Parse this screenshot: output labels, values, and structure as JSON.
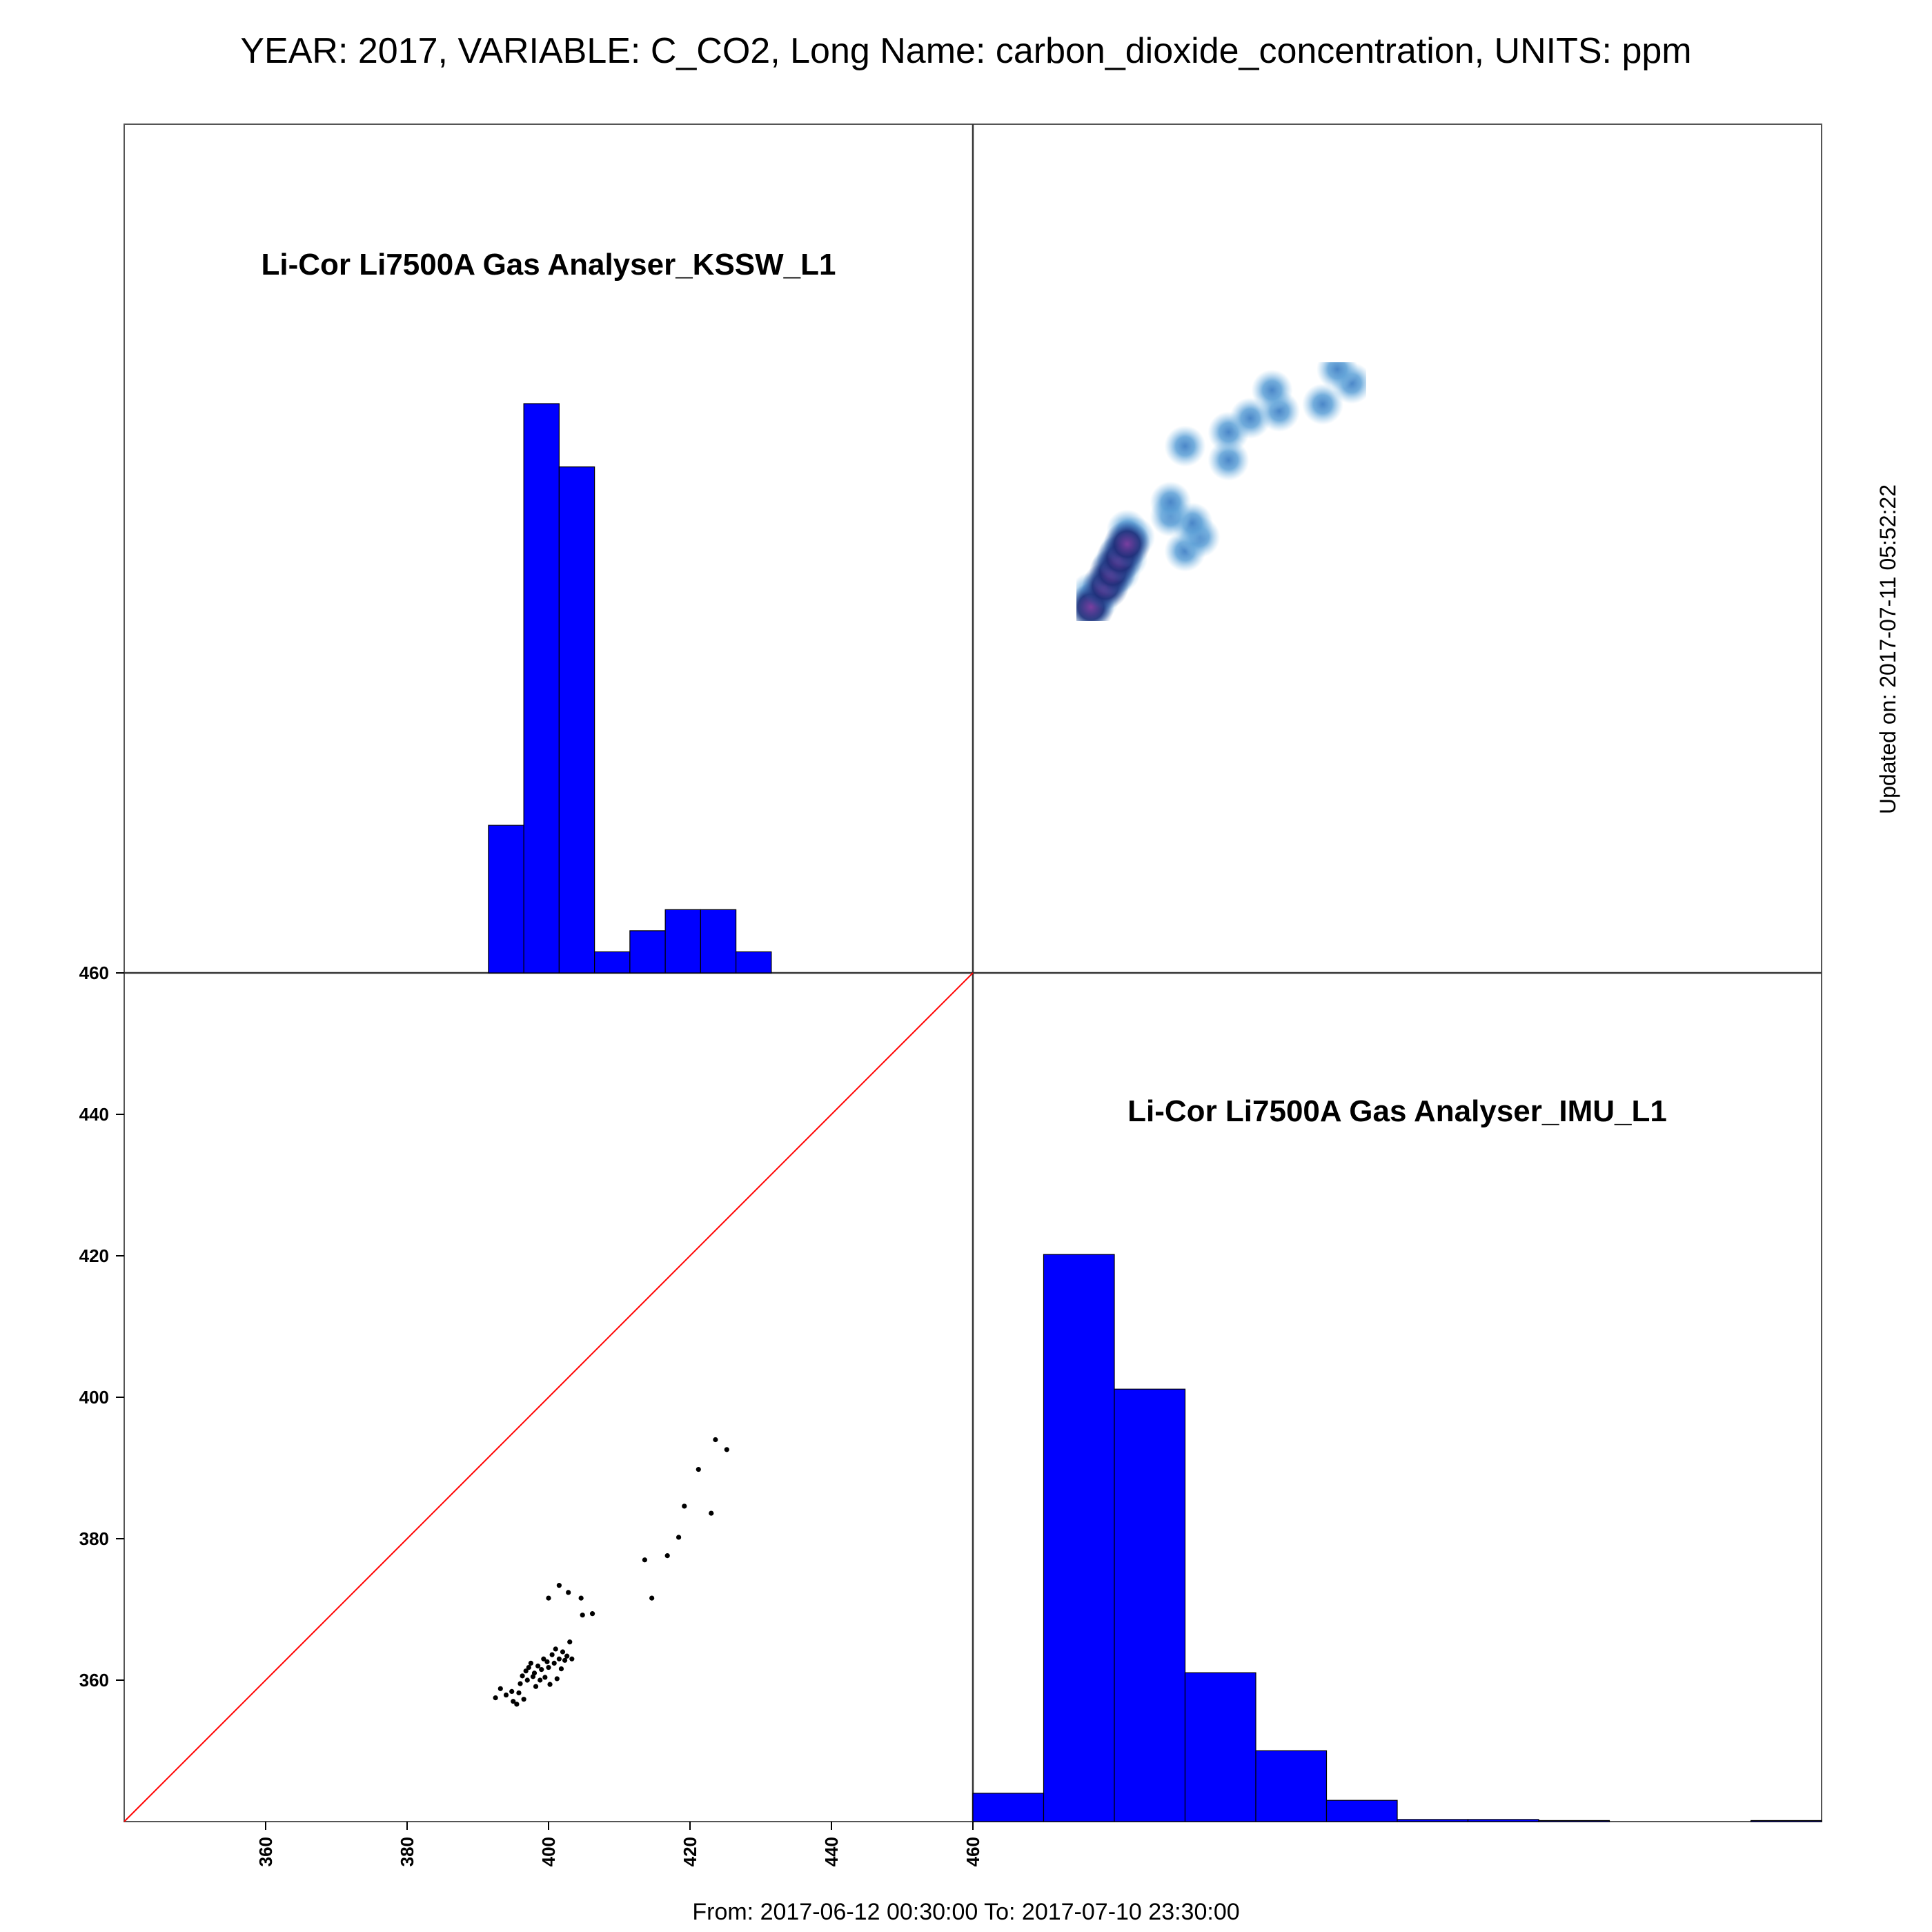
{
  "header": {
    "title": "YEAR: 2017, VARIABLE: C_CO2, Long Name: carbon_dioxide_concentration, UNITS: ppm"
  },
  "footer": {
    "range": "From: 2017-06-12 00:30:00 To: 2017-07-10 23:30:00",
    "updated": "Updated on: 2017-07-11 05:52:22"
  },
  "colors": {
    "histogram": "#0000ff",
    "identity_line": "#ff0000",
    "points": "#000000"
  },
  "chart_data": [
    {
      "type": "bar",
      "panel": "top-left",
      "title": "Li-Cor Li7500A Gas Analyser_KSSW_L1",
      "bins": [
        {
          "x0": 390,
          "x1": 395,
          "count": 21
        },
        {
          "x0": 395,
          "x1": 400,
          "count": 81
        },
        {
          "x0": 400,
          "x1": 405,
          "count": 72
        },
        {
          "x0": 405,
          "x1": 410,
          "count": 3
        },
        {
          "x0": 410,
          "x1": 415,
          "count": 6
        },
        {
          "x0": 415,
          "x1": 420,
          "count": 9
        },
        {
          "x0": 420,
          "x1": 425,
          "count": 9
        },
        {
          "x0": 425,
          "x1": 430,
          "count": 3
        }
      ],
      "xlim": [
        340,
        460
      ]
    },
    {
      "type": "heatmap",
      "panel": "top-right",
      "description_points": [
        [
          392,
          358
        ],
        [
          393,
          359
        ],
        [
          394,
          358
        ],
        [
          395,
          360
        ],
        [
          396,
          361
        ],
        [
          397,
          362
        ],
        [
          398,
          361
        ],
        [
          399,
          363
        ],
        [
          400,
          362
        ],
        [
          401,
          363
        ],
        [
          402,
          364
        ],
        [
          403,
          363
        ],
        [
          400,
          371
        ],
        [
          402,
          373
        ],
        [
          404,
          372
        ],
        [
          405,
          369
        ],
        [
          407,
          369
        ],
        [
          413,
          377
        ],
        [
          415,
          371
        ],
        [
          417,
          377
        ],
        [
          419,
          380
        ],
        [
          420,
          384
        ],
        [
          421,
          390
        ],
        [
          423,
          383
        ],
        [
          424,
          394
        ],
        [
          426,
          392
        ]
      ],
      "xlim": [
        340,
        460
      ],
      "ylim": [
        340,
        460
      ]
    },
    {
      "type": "scatter",
      "panel": "bottom-left",
      "x_ticks": [
        360,
        380,
        400,
        420,
        440,
        460
      ],
      "y_ticks": [
        360,
        380,
        400,
        420,
        440,
        460
      ],
      "xlim": [
        340,
        460
      ],
      "ylim": [
        340,
        460
      ],
      "identity_line": true,
      "points": [
        [
          392.5,
          357.5
        ],
        [
          393.2,
          358.8
        ],
        [
          394.0,
          357.9
        ],
        [
          394.8,
          358.4
        ],
        [
          395.0,
          357.0
        ],
        [
          395.5,
          356.6
        ],
        [
          395.8,
          358.2
        ],
        [
          396.0,
          359.5
        ],
        [
          396.3,
          360.6
        ],
        [
          396.5,
          357.3
        ],
        [
          396.8,
          361.3
        ],
        [
          397.0,
          360.0
        ],
        [
          397.2,
          361.8
        ],
        [
          397.5,
          362.4
        ],
        [
          397.8,
          360.5
        ],
        [
          398.0,
          361.0
        ],
        [
          398.2,
          359.1
        ],
        [
          398.5,
          362.0
        ],
        [
          398.8,
          360.0
        ],
        [
          399.0,
          361.5
        ],
        [
          399.3,
          363.0
        ],
        [
          399.5,
          360.4
        ],
        [
          399.8,
          362.6
        ],
        [
          400.0,
          361.8
        ],
        [
          400.2,
          359.4
        ],
        [
          400.5,
          363.6
        ],
        [
          400.8,
          362.4
        ],
        [
          401.0,
          364.4
        ],
        [
          401.2,
          360.2
        ],
        [
          401.5,
          363.0
        ],
        [
          401.8,
          361.6
        ],
        [
          402.0,
          364.0
        ],
        [
          402.3,
          362.8
        ],
        [
          402.6,
          363.4
        ],
        [
          403.0,
          365.4
        ],
        [
          403.3,
          363.0
        ],
        [
          400.0,
          371.6
        ],
        [
          401.5,
          373.4
        ],
        [
          402.8,
          372.4
        ],
        [
          404.6,
          371.6
        ],
        [
          404.8,
          369.2
        ],
        [
          406.2,
          369.4
        ],
        [
          413.6,
          377.0
        ],
        [
          414.6,
          371.6
        ],
        [
          416.8,
          377.6
        ],
        [
          418.4,
          380.2
        ],
        [
          419.2,
          384.6
        ],
        [
          421.2,
          389.8
        ],
        [
          423.0,
          383.6
        ],
        [
          423.6,
          394.0
        ],
        [
          425.2,
          392.6
        ]
      ]
    },
    {
      "type": "bar",
      "panel": "bottom-right",
      "title": "Li-Cor Li7500A Gas Analyser_IMU_L1",
      "bins": [
        {
          "x0": 340,
          "x1": 350,
          "count": 4
        },
        {
          "x0": 350,
          "x1": 360,
          "count": 80
        },
        {
          "x0": 360,
          "x1": 370,
          "count": 61
        },
        {
          "x0": 370,
          "x1": 380,
          "count": 21
        },
        {
          "x0": 380,
          "x1": 390,
          "count": 10
        },
        {
          "x0": 390,
          "x1": 400,
          "count": 3
        },
        {
          "x0": 400,
          "x1": 410,
          "count": 0.3
        },
        {
          "x0": 410,
          "x1": 420,
          "count": 0.3
        },
        {
          "x0": 420,
          "x1": 430,
          "count": 0.15
        },
        {
          "x0": 450,
          "x1": 460,
          "count": 0.15
        }
      ],
      "xlim": [
        340,
        460
      ]
    }
  ]
}
